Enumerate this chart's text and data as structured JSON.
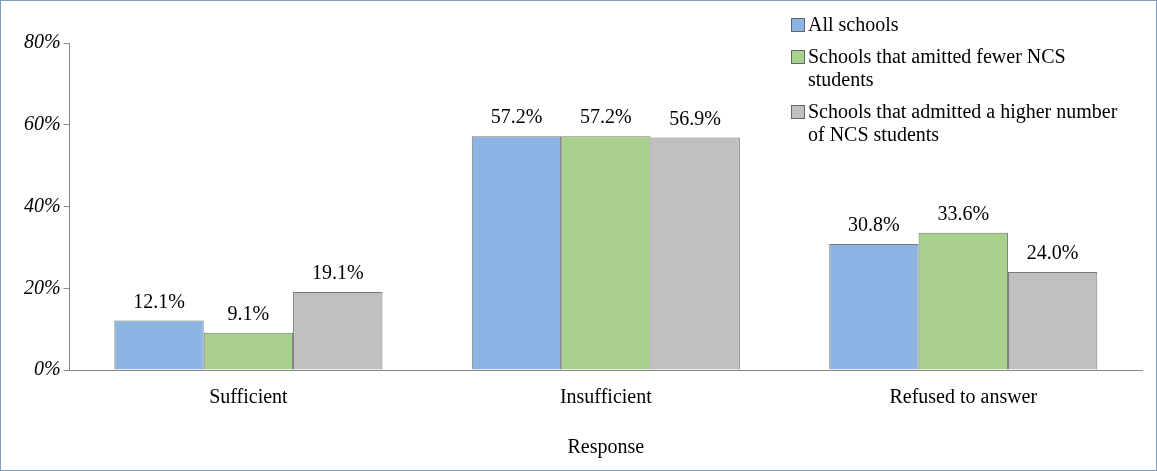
{
  "chart_data": {
    "type": "bar",
    "xlabel": "Response",
    "categories": [
      "Sufficient",
      "Insufficient",
      "Refused to answer"
    ],
    "series": [
      {
        "name": "All schools",
        "color": "#8db4e2",
        "values": [
          12.1,
          57.2,
          30.8
        ],
        "value_labels": [
          "12.1%",
          "57.2%",
          "30.8%"
        ]
      },
      {
        "name": "Schools that amitted fewer NCS students",
        "color": "#a9d18e",
        "values": [
          9.1,
          57.2,
          33.6
        ],
        "value_labels": [
          "9.1%",
          "57.2%",
          "33.6%"
        ]
      },
      {
        "name": "Schools that admitted a higher number of NCS students",
        "color": "#c0c0c0",
        "values": [
          19.1,
          56.9,
          24.0
        ],
        "value_labels": [
          "19.1%",
          "56.9%",
          "24.0%"
        ]
      }
    ],
    "ylim": [
      0,
      80
    ],
    "yticks": [
      {
        "value": 0,
        "label": "0%"
      },
      {
        "value": 20,
        "label": "20%"
      },
      {
        "value": 40,
        "label": "40%"
      },
      {
        "value": 60,
        "label": "60%"
      },
      {
        "value": 80,
        "label": "80%"
      }
    ],
    "grid": false,
    "legend": "top right"
  }
}
